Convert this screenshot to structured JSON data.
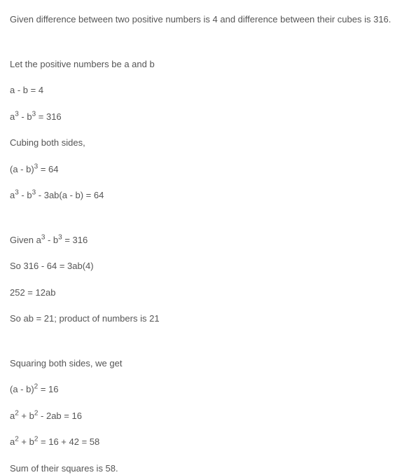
{
  "lines": {
    "l1": "Given difference between two positive numbers is 4 and difference between their cubes is 316.",
    "l2": "Let the positive numbers be a and b",
    "l3": "a - b = 4",
    "l4_pre": "a",
    "l4_sup1": "3",
    "l4_mid": " - b",
    "l4_sup2": "3",
    "l4_post": " = 316",
    "l5": "Cubing both sides,",
    "l6_pre": "(a - b)",
    "l6_sup": "3",
    "l6_post": " = 64",
    "l7_pre": "a",
    "l7_sup1": "3",
    "l7_mid1": " - b",
    "l7_sup2": "3",
    "l7_mid2": " - 3ab(a - b) = 64",
    "l8_pre": "Given a",
    "l8_sup1": "3",
    "l8_mid": " - b",
    "l8_sup2": "3",
    "l8_post": " = 316",
    "l9": "So 316 - 64 = 3ab(4)",
    "l10": "252 = 12ab",
    "l11": "So ab = 21; product of numbers is 21",
    "l12": "Squaring both sides, we get",
    "l13_pre": "(a - b)",
    "l13_sup": "2",
    "l13_post": " = 16",
    "l14_pre": "a",
    "l14_sup1": "2",
    "l14_mid": " + b",
    "l14_sup2": "2",
    "l14_post": " - 2ab = 16",
    "l15_pre": "a",
    "l15_sup1": "2",
    "l15_mid": " + b",
    "l15_sup2": "2",
    "l15_post": " = 16 + 42 = 58",
    "l16": "Sum of their squares is 58."
  }
}
